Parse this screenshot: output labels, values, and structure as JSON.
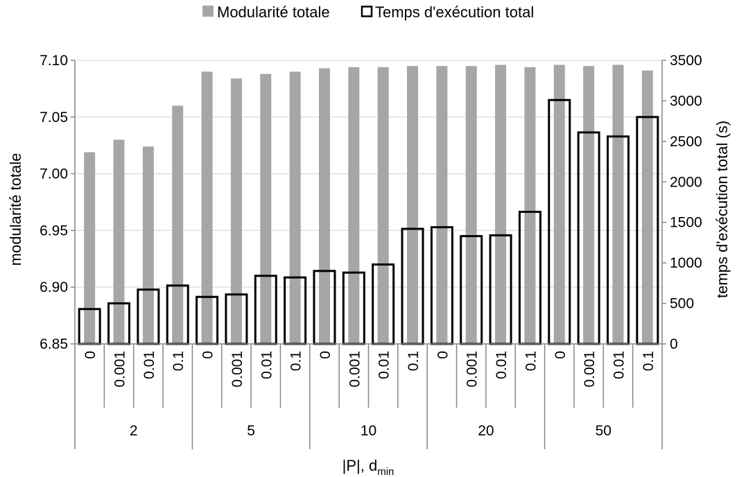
{
  "chart_data": {
    "type": "bar",
    "legend": {
      "placement": "top-center",
      "entries": [
        "Modularité totale",
        "Temps d'exécution total"
      ]
    },
    "x_axis": {
      "label_main": "|P|, d",
      "label_sub": "min",
      "groups": [
        "2",
        "5",
        "10",
        "20",
        "50"
      ],
      "subcategories": [
        "0",
        "0.001",
        "0.01",
        "0.1"
      ]
    },
    "y_left": {
      "label": "modularité totale",
      "range": [
        6.85,
        7.1
      ],
      "ticks": [
        "6.85",
        "6.90",
        "6.95",
        "7.00",
        "7.05",
        "7.10"
      ]
    },
    "y_right": {
      "label": "temps d'exécution total (s)",
      "range": [
        0,
        3500
      ],
      "ticks": [
        "0",
        "500",
        "1000",
        "1500",
        "2000",
        "2500",
        "3000",
        "3500"
      ]
    },
    "series": [
      {
        "name": "Modularité totale",
        "axis": "left",
        "style": "filled",
        "color": "#a6a6a6",
        "values": [
          7.019,
          7.03,
          7.024,
          7.06,
          7.09,
          7.084,
          7.088,
          7.09,
          7.093,
          7.094,
          7.094,
          7.095,
          7.095,
          7.095,
          7.096,
          7.094,
          7.096,
          7.095,
          7.096,
          7.091
        ]
      },
      {
        "name": "Temps d'exécution total",
        "axis": "right",
        "style": "outline",
        "color": "#000000",
        "values": [
          430,
          500,
          670,
          720,
          580,
          610,
          840,
          820,
          900,
          880,
          980,
          1420,
          1440,
          1330,
          1340,
          1630,
          3010,
          2610,
          2560,
          2800
        ]
      }
    ],
    "grid": {
      "horizontal": true,
      "color": "#d9d9d9"
    }
  }
}
